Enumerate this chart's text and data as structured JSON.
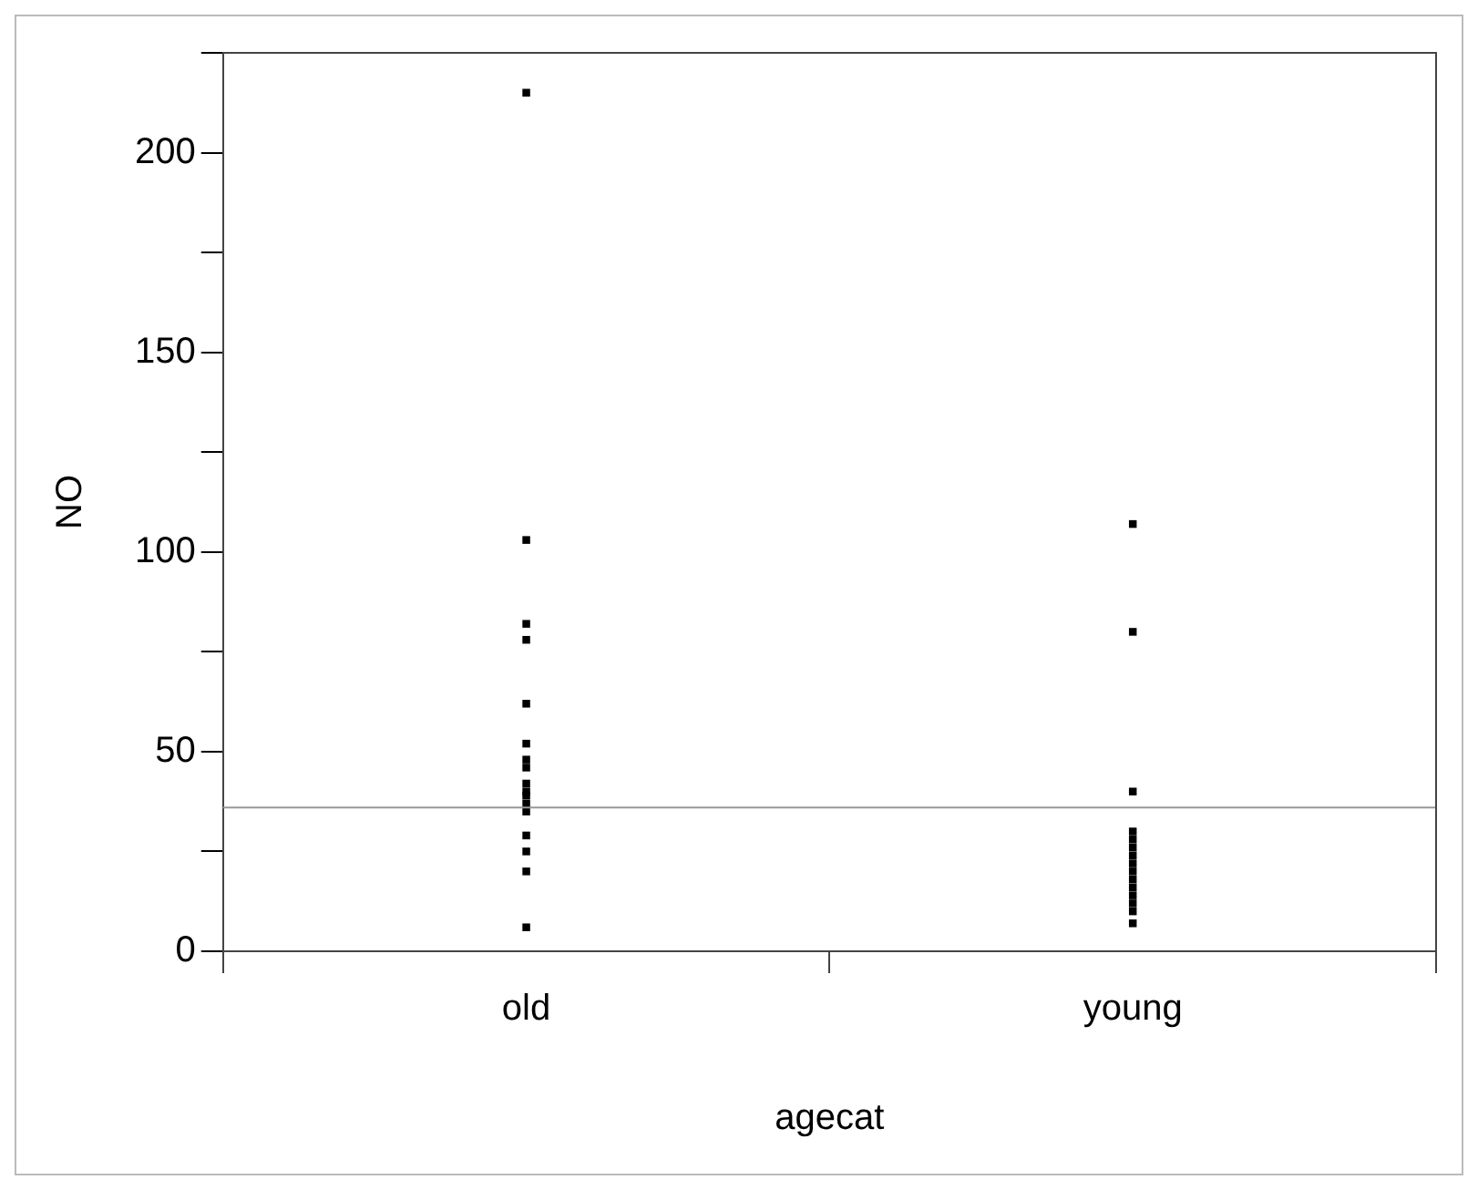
{
  "chart_data": {
    "type": "scatter",
    "xlabel": "agecat",
    "ylabel": "NO",
    "categories": [
      "old",
      "young"
    ],
    "series": [
      {
        "color": "#000000",
        "x": [
          "old",
          "old",
          "old",
          "old",
          "old",
          "old",
          "old",
          "old",
          "old",
          "old",
          "old",
          "old",
          "old",
          "old",
          "old",
          "old",
          "old"
        ],
        "values": [
          215,
          103,
          82,
          78,
          62,
          52,
          48,
          46,
          42,
          40,
          39,
          37,
          35,
          29,
          25,
          20,
          6
        ]
      },
      {
        "color": "#000000",
        "x": [
          "young",
          "young",
          "young",
          "young",
          "young",
          "young",
          "young",
          "young",
          "young",
          "young",
          "young",
          "young",
          "young",
          "young",
          "young"
        ],
        "values": [
          107,
          80,
          40,
          30,
          28,
          26,
          24,
          22,
          20,
          18,
          16,
          14,
          12,
          10,
          7
        ]
      }
    ],
    "ylim": [
      0,
      225
    ],
    "yticks": [
      0,
      {
        "value": 25,
        "label": null
      },
      50,
      {
        "value": 75,
        "label": null
      },
      100,
      {
        "value": 125,
        "label": null
      },
      150,
      {
        "value": 175,
        "label": null
      },
      200,
      {
        "value": 225,
        "label": null
      }
    ],
    "ref_lines": [
      {
        "axis": "y",
        "value": 36,
        "color": "#999999"
      }
    ],
    "marker": "square",
    "grid": false,
    "legend": false
  }
}
